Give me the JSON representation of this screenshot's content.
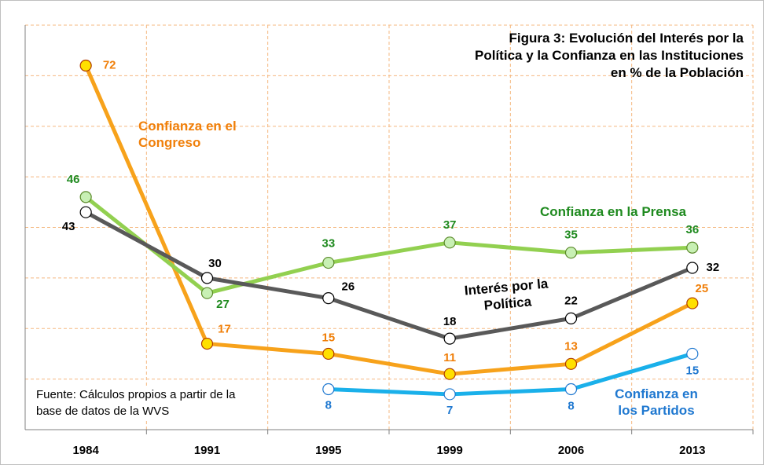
{
  "chart_data": {
    "type": "line",
    "title": "Figura 3: Evolución del Interés por la Política y la Confianza en las Instituciones en % de la Población",
    "annotations": [
      "Fuente: Cálculos propios a partir de la base de datos de la WVS"
    ],
    "categories": [
      "1984",
      "1991",
      "1995",
      "1999",
      "2006",
      "2013"
    ],
    "ylim": [
      0,
      80
    ],
    "yticks": [
      0,
      10,
      20,
      30,
      40,
      50,
      60,
      70,
      80
    ],
    "grid": true,
    "series": [
      {
        "name": "Confianza en el Congreso",
        "color": "#f7a21b",
        "marker_color": "#ffe000",
        "label_color": "#f07f09",
        "values": [
          72,
          17,
          15,
          11,
          13,
          25
        ]
      },
      {
        "name": "Confianza en la Prensa",
        "color": "#92d050",
        "marker_color": "#c8f0b4",
        "label_color": "#1f8a1f",
        "values": [
          46,
          27,
          33,
          37,
          35,
          36
        ]
      },
      {
        "name": "Interés por la Política",
        "color": "#595959",
        "marker_color": "#ffffff",
        "label_color": "#000000",
        "values": [
          43,
          30,
          26,
          18,
          22,
          32
        ]
      },
      {
        "name": "Confianza en los Partidos",
        "color": "#1ab0ea",
        "marker_color": "#ffffff",
        "label_color": "#1f78d0",
        "values": [
          null,
          null,
          8,
          7,
          8,
          15
        ]
      }
    ]
  }
}
